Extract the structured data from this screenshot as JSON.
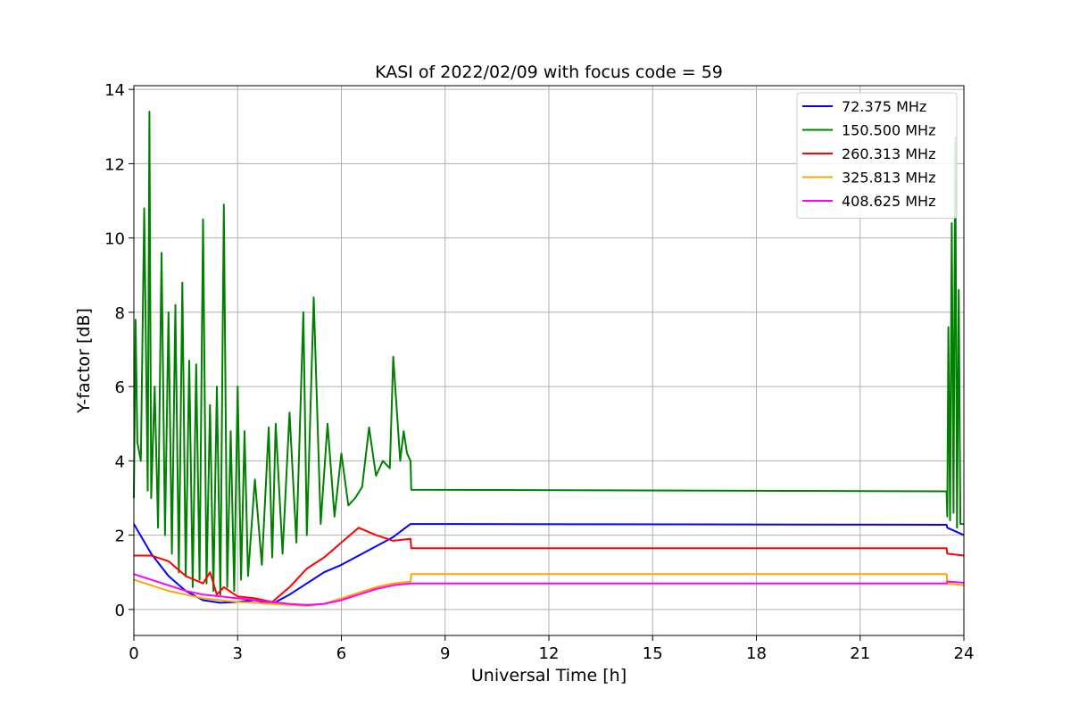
{
  "chart_data": {
    "type": "line",
    "title": "KASI of 2022/02/09 with focus code = 59",
    "xlabel": "Universal Time [h]",
    "ylabel": "Y-factor [dB]",
    "xlim": [
      0,
      24
    ],
    "ylim": [
      -0.7,
      14.1
    ],
    "x_ticks": [
      0,
      3,
      6,
      9,
      12,
      15,
      18,
      21,
      24
    ],
    "y_ticks": [
      0,
      2,
      4,
      6,
      8,
      10,
      12,
      14
    ],
    "grid": true,
    "legend_position": "top-right",
    "series": [
      {
        "name": " 72.375 MHz",
        "color": "#0000ff",
        "x": [
          0,
          0.5,
          1,
          1.5,
          2,
          2.5,
          3,
          3.5,
          4,
          4.5,
          5,
          5.5,
          6,
          6.5,
          7,
          7.5,
          8,
          8.02,
          23.5,
          23.52,
          24
        ],
        "y": [
          2.3,
          1.5,
          0.9,
          0.5,
          0.25,
          0.18,
          0.2,
          0.25,
          0.15,
          0.4,
          0.7,
          1.0,
          1.2,
          1.45,
          1.7,
          1.95,
          2.3,
          2.3,
          2.28,
          2.2,
          2.0
        ]
      },
      {
        "name": "150.500 MHz",
        "color": "#008000",
        "x": [
          0,
          0.05,
          0.1,
          0.2,
          0.3,
          0.4,
          0.45,
          0.5,
          0.6,
          0.7,
          0.8,
          0.9,
          1.0,
          1.1,
          1.2,
          1.3,
          1.4,
          1.5,
          1.6,
          1.7,
          1.8,
          1.9,
          2.0,
          2.1,
          2.2,
          2.3,
          2.4,
          2.5,
          2.6,
          2.7,
          2.8,
          2.9,
          3.0,
          3.1,
          3.2,
          3.3,
          3.5,
          3.7,
          3.9,
          4.0,
          4.1,
          4.3,
          4.5,
          4.7,
          4.9,
          5.0,
          5.2,
          5.4,
          5.6,
          5.8,
          6.0,
          6.2,
          6.4,
          6.6,
          6.8,
          7.0,
          7.2,
          7.4,
          7.5,
          7.7,
          7.8,
          7.9,
          8.0,
          8.02,
          23.5,
          23.52,
          23.55,
          23.6,
          23.65,
          23.7,
          23.75,
          23.8,
          23.85,
          23.9,
          24
        ],
        "y": [
          3.0,
          7.8,
          4.5,
          4.0,
          10.8,
          3.2,
          13.4,
          3.0,
          6.0,
          2.2,
          9.6,
          2.0,
          8.0,
          1.5,
          8.2,
          1.0,
          8.8,
          0.9,
          6.7,
          0.6,
          6.6,
          0.8,
          10.5,
          0.7,
          5.5,
          0.5,
          6.0,
          0.4,
          10.9,
          0.6,
          4.8,
          0.5,
          6.0,
          0.8,
          4.8,
          0.9,
          3.5,
          1.2,
          4.9,
          1.4,
          5.0,
          1.5,
          5.3,
          1.8,
          8.0,
          2.0,
          8.4,
          2.3,
          5.0,
          2.5,
          4.2,
          2.8,
          3.0,
          3.3,
          4.9,
          3.6,
          4.0,
          3.8,
          6.8,
          4.0,
          4.8,
          4.2,
          4.0,
          3.22,
          3.18,
          2.5,
          7.6,
          2.4,
          10.4,
          2.6,
          12.7,
          2.2,
          8.6,
          2.3,
          2.3
        ]
      },
      {
        "name": "260.313 MHz",
        "color": "#ff0000",
        "x": [
          0,
          0.5,
          1,
          1.5,
          2,
          2.2,
          2.4,
          2.6,
          3,
          3.5,
          4,
          4.5,
          5,
          5.5,
          6,
          6.5,
          7,
          7.5,
          8,
          8.02,
          23.5,
          23.52,
          24
        ],
        "y": [
          1.45,
          1.45,
          1.3,
          0.9,
          0.7,
          1.0,
          0.4,
          0.6,
          0.35,
          0.3,
          0.2,
          0.6,
          1.1,
          1.4,
          1.8,
          2.2,
          2.0,
          1.85,
          1.9,
          1.65,
          1.65,
          1.5,
          1.45
        ]
      },
      {
        "name": "325.813 MHz",
        "color": "#ffa500",
        "x": [
          0,
          0.5,
          1,
          1.5,
          2,
          2.5,
          3,
          3.5,
          4,
          4.5,
          5,
          5.5,
          6,
          6.5,
          7,
          7.5,
          8,
          8.02,
          23.5,
          23.52,
          24
        ],
        "y": [
          0.8,
          0.65,
          0.5,
          0.4,
          0.3,
          0.25,
          0.2,
          0.18,
          0.15,
          0.12,
          0.1,
          0.15,
          0.3,
          0.45,
          0.6,
          0.7,
          0.75,
          0.95,
          0.95,
          0.7,
          0.65
        ]
      },
      {
        "name": "408.625 MHz",
        "color": "#ff00ff",
        "x": [
          0,
          0.5,
          1,
          1.5,
          2,
          2.5,
          3,
          3.5,
          4,
          4.5,
          5,
          5.5,
          6,
          6.5,
          7,
          7.5,
          8,
          8.02,
          23.5,
          23.52,
          24
        ],
        "y": [
          0.95,
          0.8,
          0.65,
          0.5,
          0.4,
          0.35,
          0.3,
          0.25,
          0.2,
          0.15,
          0.12,
          0.15,
          0.25,
          0.4,
          0.55,
          0.65,
          0.7,
          0.7,
          0.7,
          0.75,
          0.72
        ]
      }
    ]
  }
}
